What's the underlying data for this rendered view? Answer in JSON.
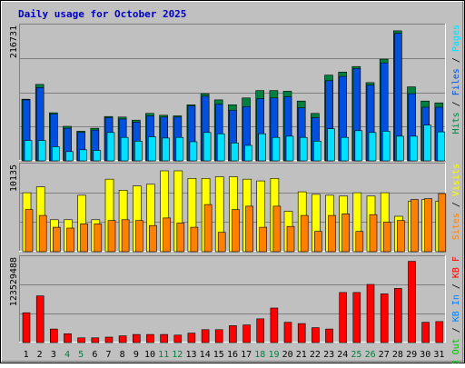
{
  "chart_data": {
    "type": "bar",
    "title": "Daily usage for October 2025",
    "categories": [
      "1",
      "2",
      "3",
      "4",
      "5",
      "6",
      "7",
      "8",
      "9",
      "10",
      "11",
      "12",
      "13",
      "14",
      "15",
      "16",
      "17",
      "18",
      "19",
      "20",
      "21",
      "22",
      "23",
      "24",
      "25",
      "26",
      "27",
      "28",
      "29",
      "30",
      "31"
    ],
    "weekend_days": [
      "4",
      "5",
      "11",
      "12",
      "18",
      "19",
      "25",
      "26"
    ],
    "panels": [
      {
        "id": "hits",
        "max_label": "216731",
        "ylim": [
          0,
          216731
        ],
        "legend": [
          {
            "label": "Pages",
            "color": "#00e0ff"
          },
          {
            "label": "Files",
            "color": "#0050e0"
          },
          {
            "label": "Hits",
            "color": "#008040"
          }
        ],
        "series": [
          {
            "name": "Hits",
            "values": [
              100000,
              124000,
              78000,
              56000,
              48000,
              53000,
              72000,
              71000,
              66000,
              77000,
              74000,
              73000,
              91000,
              109000,
              99000,
              91000,
              102000,
              114000,
              114000,
              113000,
              97000,
              77000,
              139000,
              144000,
              153000,
              127000,
              165000,
              211000,
              120000,
              97000,
              94000
            ]
          },
          {
            "name": "Files",
            "values": [
              99000,
              119000,
              76000,
              53000,
              46000,
              50000,
              70000,
              68000,
              63000,
              73000,
              71000,
              71000,
              89000,
              105000,
              92000,
              82000,
              88000,
              101000,
              102000,
              104000,
              86000,
              70000,
              130000,
              137000,
              150000,
              123000,
              159000,
              207000,
              109000,
              87000,
              87000
            ]
          },
          {
            "name": "Pages",
            "values": [
              33000,
              33000,
              23000,
              15000,
              18000,
              17000,
              46000,
              38000,
              32000,
              39000,
              37000,
              38000,
              31000,
              46000,
              44000,
              29000,
              25000,
              44000,
              38000,
              40000,
              38000,
              32000,
              52000,
              38000,
              49000,
              46000,
              48000,
              40000,
              40000,
              58000,
              47000
            ]
          }
        ]
      },
      {
        "id": "visits",
        "max_label": "10135",
        "ylim": [
          0,
          10135
        ],
        "legend": [
          {
            "label": "Visits",
            "color": "#ffff00"
          },
          {
            "label": "Sites",
            "color": "#ff8000"
          }
        ],
        "series": [
          {
            "name": "Visits",
            "values": [
              7000,
              7700,
              3800,
              3800,
              6700,
              3800,
              8600,
              7300,
              7800,
              8000,
              9600,
              9600,
              8700,
              8700,
              8900,
              8900,
              8600,
              8400,
              8700,
              4800,
              7100,
              6800,
              6700,
              6600,
              7000,
              6600,
              7000,
              4200,
              6000,
              6200,
              6000
            ]
          },
          {
            "name": "Sites",
            "values": [
              5000,
              4300,
              2900,
              2800,
              3300,
              3300,
              3700,
              3800,
              3700,
              3100,
              4000,
              3400,
              2900,
              5600,
              2300,
              5000,
              5400,
              2900,
              5400,
              3000,
              4300,
              2400,
              4300,
              4500,
              2400,
              4400,
              3500,
              3700,
              6200,
              6300,
              6900
            ]
          }
        ]
      },
      {
        "id": "kbytes",
        "max_label": "123529488",
        "ylim": [
          0,
          123529488
        ],
        "legend": [
          {
            "label": "KB F",
            "color": "#ff0000"
          },
          {
            "label": "KB In",
            "color": "#0080ff"
          },
          {
            "label": "KB Out",
            "color": "#00c000"
          }
        ],
        "series": [
          {
            "name": "KB F",
            "values": [
              44000000,
              69000000,
              20000000,
              13000000,
              7000000,
              7000000,
              8000000,
              10000000,
              12000000,
              12000000,
              12000000,
              11000000,
              14000000,
              19000000,
              19000000,
              25000000,
              26000000,
              35000000,
              51000000,
              30000000,
              28000000,
              22000000,
              20000000,
              74000000,
              74000000,
              86000000,
              72000000,
              80000000,
              120000000,
              30000000,
              31000000
            ]
          }
        ]
      }
    ]
  }
}
